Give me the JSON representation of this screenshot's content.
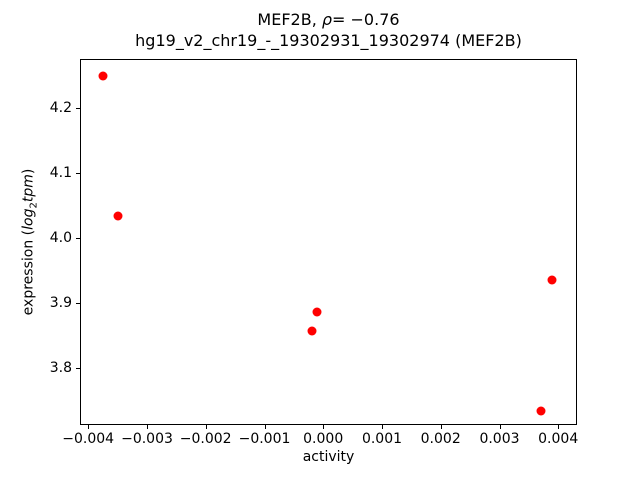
{
  "figure": {
    "background_color": "#ffffff",
    "text_color": "#000000",
    "title_line1": {
      "prefix": "MEF2B, ",
      "rho": "ρ",
      "suffix": "= −0.76"
    },
    "title_line2": "hg19_v2_chr19_-_19302931_19302974 (MEF2B)"
  },
  "ylabel_parts": {
    "prefix": "expression (",
    "log": "log",
    "sub": "2",
    "tpm": "tpm",
    "close": ")"
  },
  "chart_data": {
    "type": "scatter",
    "title": "MEF2B, ρ= −0.76",
    "subtitle": "hg19_v2_chr19_-_19302931_19302974 (MEF2B)",
    "xlabel": "activity",
    "ylabel": "expression (log2 tpm)",
    "grid": false,
    "legend": false,
    "marker": "circle",
    "marker_color": "#ff0000",
    "xlim": [
      -0.00414,
      0.00432
    ],
    "ylim": [
      3.713,
      4.276
    ],
    "x_ticks": [
      -0.004,
      -0.003,
      -0.002,
      -0.001,
      0.0,
      0.001,
      0.002,
      0.003,
      0.004
    ],
    "x_tick_labels": [
      "−0.004",
      "−0.003",
      "−0.002",
      "−0.001",
      "0.000",
      "0.001",
      "0.002",
      "0.003",
      "0.004"
    ],
    "y_ticks": [
      3.8,
      3.9,
      4.0,
      4.1,
      4.2
    ],
    "y_tick_labels": [
      "3.8",
      "3.9",
      "4.0",
      "4.1",
      "4.2"
    ],
    "points": [
      {
        "x": -0.00375,
        "y": 4.25
      },
      {
        "x": -0.0035,
        "y": 4.034
      },
      {
        "x": -0.0002,
        "y": 3.857
      },
      {
        "x": -0.0001,
        "y": 3.887
      },
      {
        "x": 0.0037,
        "y": 3.735
      },
      {
        "x": 0.0039,
        "y": 3.936
      }
    ]
  }
}
